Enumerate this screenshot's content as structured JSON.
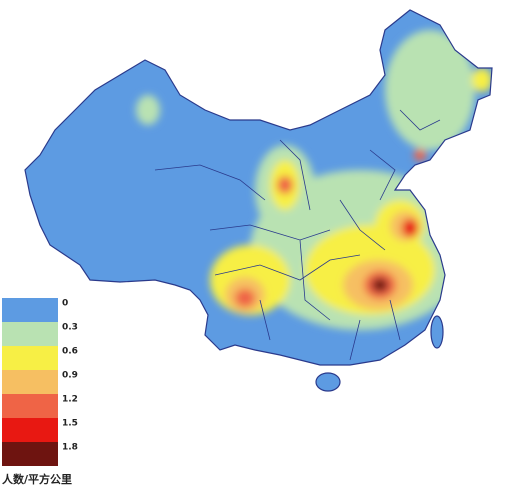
{
  "legend": {
    "title": "人数/平方公里",
    "items": [
      {
        "label": "0",
        "color": "#5d9be2"
      },
      {
        "label": "0.3",
        "color": "#b9e2b2"
      },
      {
        "label": "0.6",
        "color": "#f7ef45"
      },
      {
        "label": "0.9",
        "color": "#f6bf62"
      },
      {
        "label": "1.2",
        "color": "#ef6446"
      },
      {
        "label": "1.5",
        "color": "#e81812"
      },
      {
        "label": "1.8",
        "color": "#6e1410"
      }
    ]
  }
}
